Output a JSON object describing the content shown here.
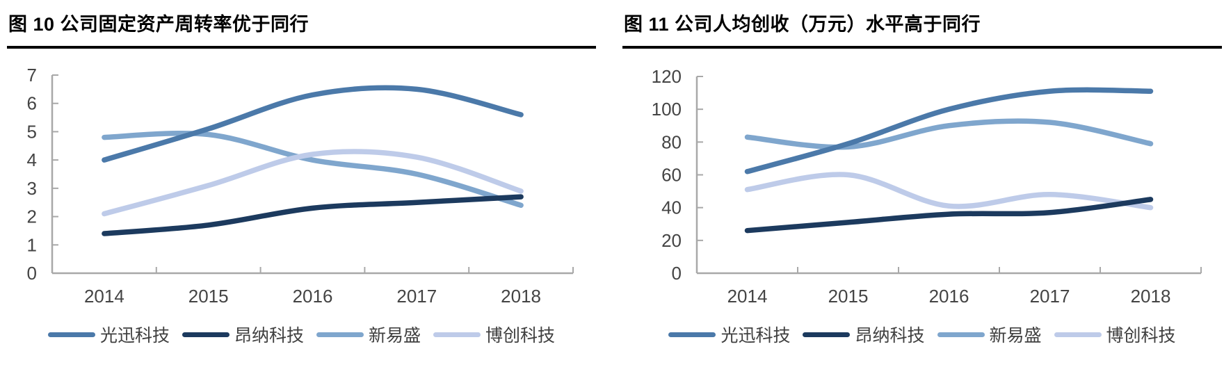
{
  "page": {
    "background": "#ffffff"
  },
  "chart_data": [
    {
      "type": "line",
      "title": "图 10 公司固定资产周转率优于同行",
      "categories": [
        "2014",
        "2015",
        "2016",
        "2017",
        "2018"
      ],
      "series": [
        {
          "name": "光迅科技",
          "color": "#4B79A9",
          "values": [
            4.0,
            5.1,
            6.3,
            6.5,
            5.6
          ]
        },
        {
          "name": "昂纳科技",
          "color": "#1C3A5E",
          "values": [
            1.4,
            1.7,
            2.3,
            2.5,
            2.7
          ]
        },
        {
          "name": "新易盛",
          "color": "#7FA6CD",
          "values": [
            4.8,
            4.9,
            4.0,
            3.5,
            2.4
          ]
        },
        {
          "name": "博创科技",
          "color": "#BECBE9",
          "values": [
            2.1,
            3.1,
            4.2,
            4.1,
            2.9
          ]
        }
      ],
      "ylim": [
        0,
        7
      ],
      "yticks": [
        "0",
        "1",
        "2",
        "3",
        "4",
        "5",
        "6",
        "7"
      ],
      "ytick_step": 1,
      "xlabel": "",
      "ylabel": "",
      "grid": false,
      "smooth": true,
      "legend_position": "bottom",
      "draw_order": [
        2,
        3,
        0,
        1
      ]
    },
    {
      "type": "line",
      "title": "图 11 公司人均创收（万元）水平高于同行",
      "categories": [
        "2014",
        "2015",
        "2016",
        "2017",
        "2018"
      ],
      "series": [
        {
          "name": "光迅科技",
          "color": "#4B79A9",
          "values": [
            62,
            79,
            100,
            111,
            111
          ]
        },
        {
          "name": "昂纳科技",
          "color": "#1C3A5E",
          "values": [
            26,
            31,
            36,
            37,
            45
          ]
        },
        {
          "name": "新易盛",
          "color": "#7FA6CD",
          "values": [
            83,
            77,
            90,
            92,
            79
          ]
        },
        {
          "name": "博创科技",
          "color": "#BECBE9",
          "values": [
            51,
            60,
            41,
            48,
            40
          ]
        }
      ],
      "ylim": [
        0,
        120
      ],
      "yticks": [
        "0",
        "20",
        "40",
        "60",
        "80",
        "100",
        "120"
      ],
      "ytick_step": 20,
      "xlabel": "",
      "ylabel": "",
      "grid": false,
      "smooth": true,
      "legend_position": "bottom",
      "draw_order": [
        2,
        3,
        0,
        1
      ]
    }
  ],
  "style": {
    "axis_color": "#a8a8a8",
    "tick_label_color": "#444444",
    "legend_text_color": "#3f3f3f",
    "line_width": 7.5
  }
}
